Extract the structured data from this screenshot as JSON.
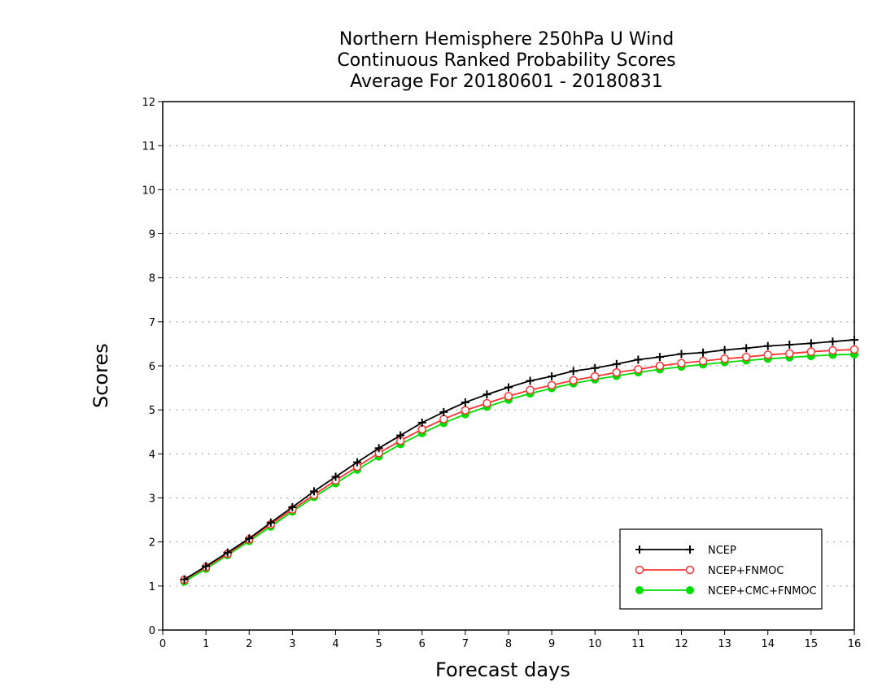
{
  "chart_data": {
    "type": "line",
    "title": [
      "Northern Hemisphere 250hPa U Wind",
      "Continuous Ranked Probability Scores",
      "Average For 20180601 - 20180831"
    ],
    "xlabel": "Forecast days",
    "ylabel": "Scores",
    "xlim": [
      0,
      16
    ],
    "ylim": [
      0,
      12
    ],
    "xticks": [
      0,
      1,
      2,
      3,
      4,
      5,
      6,
      7,
      8,
      9,
      10,
      11,
      12,
      13,
      14,
      15,
      16
    ],
    "yticks": [
      0,
      1,
      2,
      3,
      4,
      5,
      6,
      7,
      8,
      9,
      10,
      11,
      12
    ],
    "grid": "horizontal dotted",
    "legend_position": "bottom-right",
    "x": [
      0.5,
      1,
      1.5,
      2,
      2.5,
      3,
      3.5,
      4,
      4.5,
      5,
      5.5,
      6,
      6.5,
      7,
      7.5,
      8,
      8.5,
      9,
      9.5,
      10,
      10.5,
      11,
      11.5,
      12,
      12.5,
      13,
      13.5,
      14,
      14.5,
      15,
      15.5,
      16
    ],
    "series": [
      {
        "name": "NCEP",
        "color": "#000000",
        "marker": "plus",
        "values": [
          1.15,
          1.45,
          1.76,
          2.08,
          2.44,
          2.79,
          3.15,
          3.48,
          3.81,
          4.13,
          4.42,
          4.71,
          4.95,
          5.17,
          5.35,
          5.51,
          5.66,
          5.76,
          5.88,
          5.95,
          6.04,
          6.14,
          6.2,
          6.27,
          6.3,
          6.36,
          6.4,
          6.45,
          6.48,
          6.51,
          6.55,
          6.59
        ]
      },
      {
        "name": "NCEP+FNMOC",
        "color": "#ff3333",
        "marker": "open-circle",
        "values": [
          1.14,
          1.43,
          1.73,
          2.06,
          2.4,
          2.74,
          3.07,
          3.4,
          3.71,
          4.02,
          4.3,
          4.56,
          4.79,
          4.99,
          5.15,
          5.31,
          5.45,
          5.56,
          5.67,
          5.76,
          5.85,
          5.92,
          6.0,
          6.06,
          6.11,
          6.16,
          6.2,
          6.25,
          6.28,
          6.32,
          6.35,
          6.37
        ]
      },
      {
        "name": "NCEP+CMC+FNMOC",
        "color": "#00dd00",
        "marker": "filled-circle",
        "values": [
          1.1,
          1.39,
          1.7,
          2.02,
          2.35,
          2.69,
          3.02,
          3.33,
          3.64,
          3.94,
          4.22,
          4.47,
          4.7,
          4.9,
          5.07,
          5.23,
          5.37,
          5.49,
          5.6,
          5.69,
          5.77,
          5.85,
          5.92,
          5.98,
          6.03,
          6.08,
          6.12,
          6.16,
          6.19,
          6.22,
          6.25,
          6.26
        ]
      }
    ]
  }
}
